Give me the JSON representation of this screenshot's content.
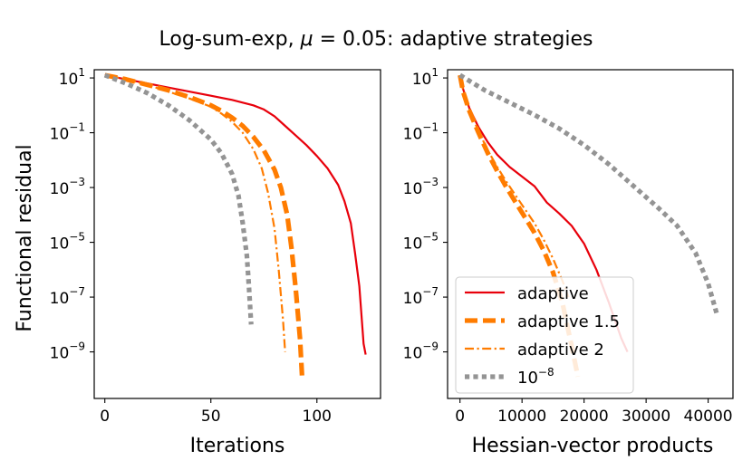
{
  "figure_title_prefix": "Log-sum-exp, ",
  "figure_title_mu": "μ",
  "figure_title_suffix": " = 0.05: adaptive strategies",
  "chart_data": [
    {
      "type": "line",
      "name": "left",
      "xlabel": "Iterations",
      "ylabel": "Functional residual",
      "yscale": "log",
      "xlim": [
        -5,
        130
      ],
      "ylim_exp": [
        -10.7,
        1.3
      ],
      "xticks": [
        0,
        50,
        100
      ],
      "xtick_labels": [
        "0",
        "50",
        "100"
      ],
      "yticks_exp": [
        1,
        -1,
        -3,
        -5,
        -7,
        -9
      ],
      "ytick_labels": [
        "1",
        "-1",
        "-3",
        "-5",
        "-7",
        "-9"
      ],
      "series": [
        {
          "name": "adaptive",
          "color": "#e8000b",
          "style": "solid",
          "x": [
            0,
            10,
            20,
            30,
            40,
            50,
            60,
            70,
            75,
            80,
            85,
            90,
            95,
            100,
            105,
            110,
            113,
            116,
            118,
            120,
            122,
            123
          ],
          "y_exp": [
            1.1,
            0.95,
            0.8,
            0.65,
            0.5,
            0.35,
            0.2,
            0.0,
            -0.15,
            -0.4,
            -0.75,
            -1.1,
            -1.45,
            -1.85,
            -2.3,
            -2.9,
            -3.5,
            -4.3,
            -5.4,
            -6.6,
            -8.7,
            -9.1
          ]
        },
        {
          "name": "adaptive 1.5",
          "color": "#ff7c00",
          "style": "dashed-thick",
          "x": [
            0,
            10,
            20,
            30,
            40,
            50,
            55,
            60,
            65,
            70,
            75,
            80,
            83,
            86,
            88,
            90,
            92,
            93
          ],
          "y_exp": [
            1.1,
            0.95,
            0.75,
            0.55,
            0.3,
            0.0,
            -0.2,
            -0.45,
            -0.75,
            -1.15,
            -1.65,
            -2.35,
            -3.0,
            -4.0,
            -5.2,
            -6.7,
            -8.5,
            -9.9
          ]
        },
        {
          "name": "adaptive 2",
          "color": "#ff7c00",
          "style": "dashdot",
          "x": [
            0,
            10,
            20,
            30,
            40,
            50,
            55,
            60,
            65,
            70,
            74,
            77,
            80,
            82,
            84,
            85
          ],
          "y_exp": [
            1.1,
            0.95,
            0.75,
            0.5,
            0.25,
            -0.05,
            -0.3,
            -0.6,
            -1.0,
            -1.6,
            -2.3,
            -3.2,
            -4.5,
            -6.0,
            -7.8,
            -9.0
          ]
        },
        {
          "name": "10^-8",
          "color": "#949494",
          "style": "dotted-thick",
          "x": [
            0,
            10,
            20,
            30,
            40,
            50,
            55,
            60,
            63,
            65,
            67,
            68,
            69
          ],
          "y_exp": [
            1.1,
            0.8,
            0.45,
            0.0,
            -0.55,
            -1.25,
            -1.75,
            -2.5,
            -3.3,
            -4.3,
            -5.5,
            -6.7,
            -8.0
          ]
        }
      ]
    },
    {
      "type": "line",
      "name": "right",
      "xlabel": "Hessian-vector products",
      "ylabel": "",
      "yscale": "log",
      "xlim": [
        -2000,
        44000
      ],
      "ylim_exp": [
        -10.7,
        1.3
      ],
      "xticks": [
        0,
        10000,
        20000,
        30000,
        40000
      ],
      "xtick_labels": [
        "0",
        "10000",
        "20000",
        "30000",
        "40000"
      ],
      "yticks_exp": [
        1,
        -1,
        -3,
        -5,
        -7,
        -9
      ],
      "ytick_labels": [
        "1",
        "-1",
        "-3",
        "-5",
        "-7",
        "-9"
      ],
      "series": [
        {
          "name": "adaptive",
          "color": "#e8000b",
          "style": "solid",
          "x": [
            0,
            500,
            1500,
            3000,
            4500,
            6000,
            8000,
            10000,
            12000,
            14000,
            16000,
            18000,
            20000,
            22000,
            24000,
            26000,
            27000
          ],
          "y_exp": [
            1.1,
            0.6,
            -0.1,
            -0.8,
            -1.35,
            -1.8,
            -2.25,
            -2.6,
            -2.95,
            -3.55,
            -3.95,
            -4.4,
            -5.05,
            -6.0,
            -7.2,
            -8.5,
            -9.0
          ]
        },
        {
          "name": "adaptive 1.5",
          "color": "#ff7c00",
          "style": "dashed-thick",
          "x": [
            0,
            500,
            1500,
            3000,
            4500,
            6000,
            7500,
            9000,
            10500,
            12000,
            13500,
            15000,
            16500,
            18000,
            19000
          ],
          "y_exp": [
            1.1,
            0.5,
            -0.2,
            -1.0,
            -1.75,
            -2.4,
            -3.0,
            -3.55,
            -4.1,
            -4.65,
            -5.3,
            -6.1,
            -7.2,
            -8.8,
            -9.9
          ]
        },
        {
          "name": "adaptive 2",
          "color": "#ff7c00",
          "style": "dashdot",
          "x": [
            0,
            500,
            1500,
            3000,
            4500,
            6000,
            7500,
            9000,
            10500,
            12000,
            13500,
            15000,
            16500,
            17500
          ],
          "y_exp": [
            1.1,
            0.55,
            -0.15,
            -0.95,
            -1.65,
            -2.25,
            -2.8,
            -3.3,
            -3.8,
            -4.3,
            -4.9,
            -5.6,
            -6.4,
            -7.0
          ]
        },
        {
          "name": "10^-8",
          "color": "#949494",
          "style": "dotted-thick",
          "x": [
            0,
            4000,
            8000,
            12000,
            16000,
            20000,
            24000,
            28000,
            32000,
            35000,
            38000,
            40000,
            41500
          ],
          "y_exp": [
            1.1,
            0.55,
            0.1,
            -0.35,
            -0.85,
            -1.45,
            -2.15,
            -2.95,
            -3.75,
            -4.4,
            -5.4,
            -6.5,
            -7.7
          ]
        }
      ],
      "legend": {
        "location": "lower-left",
        "entries": [
          {
            "label": "adaptive",
            "series": 0
          },
          {
            "label": "adaptive 1.5",
            "series": 1
          },
          {
            "label": "adaptive 2",
            "series": 2
          },
          {
            "label_base": "10",
            "label_exp": "−8",
            "series": 3
          }
        ]
      }
    }
  ]
}
